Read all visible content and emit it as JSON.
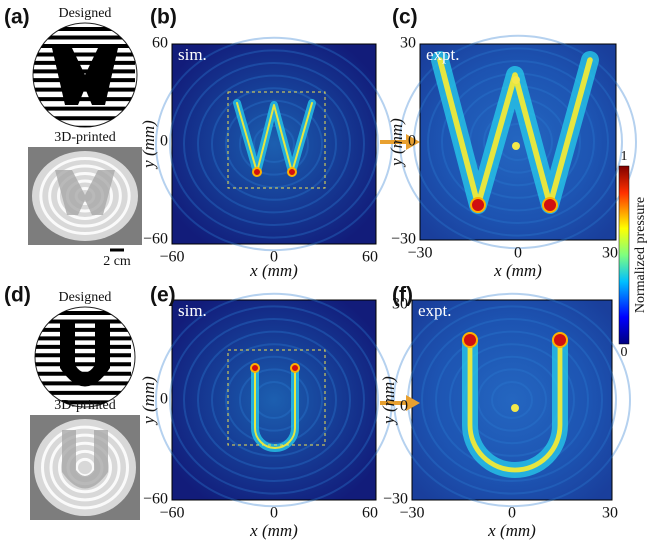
{
  "panels": [
    {
      "label": "(a)",
      "designed": "Designed",
      "printed": "3D-printed",
      "scale": "2 cm"
    },
    {
      "label": "(b)",
      "tag": "sim.",
      "xticks": [
        "−60",
        "0",
        "60"
      ],
      "yticks": [
        "60",
        "0",
        "−60"
      ],
      "xlabel": "x (mm)",
      "ylabel": "y (mm)"
    },
    {
      "label": "(c)",
      "tag": "expt.",
      "xticks": [
        "−30",
        "0",
        "30"
      ],
      "yticks": [
        "30",
        "0",
        "−30"
      ],
      "xlabel": "x (mm)",
      "ylabel": "y (mm)"
    },
    {
      "label": "(d)",
      "designed": "Designed",
      "printed": "3D-printed"
    },
    {
      "label": "(e)",
      "tag": "sim.",
      "xticks": [
        "−60",
        "0",
        "60"
      ],
      "yticks": [
        "0",
        "−60"
      ],
      "xlabel": "x (mm)",
      "ylabel": "y (mm)"
    },
    {
      "label": "(f)",
      "tag": "expt.",
      "xticks": [
        "−30",
        "0",
        "30"
      ],
      "yticks": [
        "30",
        "0",
        "−30"
      ],
      "xlabel": "x (mm)",
      "ylabel": "y (mm)"
    }
  ],
  "colorbar": {
    "max": "1",
    "min": "0",
    "title": "Normalized pressure"
  }
}
